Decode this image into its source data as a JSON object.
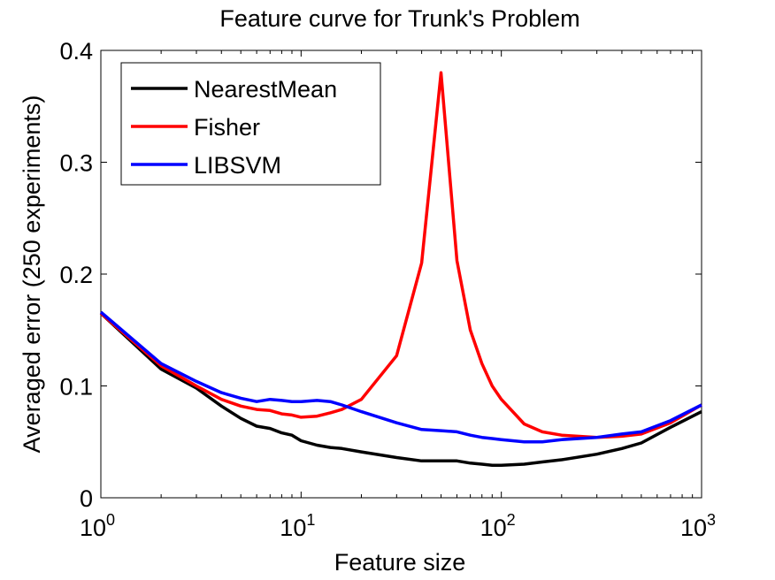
{
  "chart_data": {
    "type": "line",
    "title": "Feature curve for Trunk's Problem",
    "xlabel": "Feature size",
    "ylabel": "Averaged error (250 experiments)",
    "xscale": "log",
    "xlim": [
      1,
      1000
    ],
    "ylim": [
      0,
      0.4
    ],
    "grid": false,
    "legend_position": "top-left",
    "x_ticks": [
      {
        "base": "10",
        "exp": "0"
      },
      {
        "base": "10",
        "exp": "1"
      },
      {
        "base": "10",
        "exp": "2"
      },
      {
        "base": "10",
        "exp": "3"
      }
    ],
    "y_ticks": [
      "0",
      "0.1",
      "0.2",
      "0.3",
      "0.4"
    ],
    "series": [
      {
        "name": "NearestMean",
        "color": "#000000",
        "x": [
          1,
          2,
          3,
          4,
          5,
          6,
          7,
          8,
          9,
          10,
          12,
          14,
          16,
          20,
          30,
          40,
          50,
          60,
          70,
          80,
          90,
          100,
          130,
          160,
          200,
          300,
          400,
          500,
          700,
          1000
        ],
        "y": [
          0.165,
          0.115,
          0.098,
          0.082,
          0.071,
          0.064,
          0.062,
          0.058,
          0.056,
          0.051,
          0.047,
          0.045,
          0.044,
          0.041,
          0.036,
          0.033,
          0.033,
          0.033,
          0.031,
          0.03,
          0.029,
          0.029,
          0.03,
          0.032,
          0.034,
          0.039,
          0.044,
          0.049,
          0.063,
          0.077
        ]
      },
      {
        "name": "Fisher",
        "color": "#ff0000",
        "x": [
          1,
          2,
          3,
          4,
          5,
          6,
          7,
          8,
          9,
          10,
          12,
          14,
          16,
          20,
          30,
          40,
          50,
          60,
          70,
          80,
          90,
          100,
          130,
          160,
          200,
          300,
          400,
          500,
          700,
          1000
        ],
        "y": [
          0.165,
          0.118,
          0.1,
          0.088,
          0.082,
          0.079,
          0.078,
          0.075,
          0.074,
          0.072,
          0.073,
          0.076,
          0.079,
          0.088,
          0.127,
          0.21,
          0.38,
          0.212,
          0.15,
          0.12,
          0.1,
          0.088,
          0.066,
          0.059,
          0.056,
          0.054,
          0.055,
          0.057,
          0.067,
          0.083
        ]
      },
      {
        "name": "LIBSVM",
        "color": "#0000ff",
        "x": [
          1,
          2,
          3,
          4,
          5,
          6,
          7,
          8,
          9,
          10,
          12,
          14,
          16,
          20,
          30,
          40,
          50,
          60,
          70,
          80,
          90,
          100,
          130,
          160,
          200,
          300,
          400,
          500,
          700,
          1000
        ],
        "y": [
          0.166,
          0.12,
          0.104,
          0.094,
          0.089,
          0.086,
          0.088,
          0.087,
          0.086,
          0.086,
          0.087,
          0.086,
          0.083,
          0.077,
          0.067,
          0.061,
          0.06,
          0.059,
          0.056,
          0.054,
          0.053,
          0.052,
          0.05,
          0.05,
          0.052,
          0.054,
          0.057,
          0.059,
          0.069,
          0.083
        ]
      }
    ]
  }
}
